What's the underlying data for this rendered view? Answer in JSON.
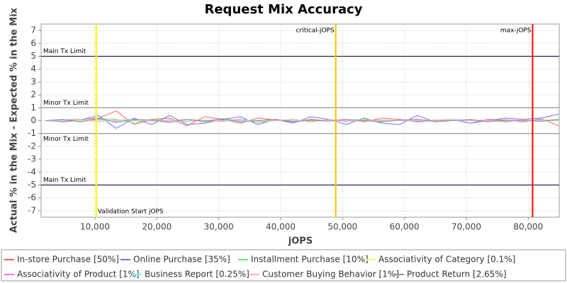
{
  "chart_data": {
    "type": "line",
    "title": "Request Mix Accuracy",
    "xlabel": "jOPS",
    "ylabel": "Actual % in the Mix - Expected % in the Mix",
    "xlim": [
      1300,
      85000
    ],
    "ylim": [
      -7.5,
      7.5
    ],
    "xticks": [
      {
        "value": 10000,
        "label": "10,000"
      },
      {
        "value": 20000,
        "label": "20,000"
      },
      {
        "value": 30000,
        "label": "30,000"
      },
      {
        "value": 40000,
        "label": "40,000"
      },
      {
        "value": 50000,
        "label": "50,000"
      },
      {
        "value": 60000,
        "label": "60,000"
      },
      {
        "value": 70000,
        "label": "70,000"
      },
      {
        "value": 80000,
        "label": "80,000"
      }
    ],
    "yticks": [
      -7,
      -6,
      -5,
      -4,
      -3,
      -2,
      -1,
      0,
      1,
      2,
      3,
      4,
      5,
      6,
      7
    ],
    "grid": true,
    "legend": "bottom",
    "x": [
      2000,
      4860,
      7720,
      10580,
      13440,
      16300,
      19160,
      22020,
      24880,
      27740,
      30600,
      33460,
      36320,
      39180,
      42040,
      44900,
      47760,
      50620,
      53480,
      56340,
      59200,
      62060,
      64920,
      67780,
      70640,
      73500,
      76360,
      79220,
      82080,
      84940
    ],
    "series": [
      {
        "name": "In-store Purchase [50%]",
        "color": "#ff6060",
        "values": [
          0,
          0.05,
          0.1,
          0.2,
          0.75,
          -0.3,
          0.1,
          0.2,
          -0.4,
          0.3,
          0.1,
          -0.2,
          0.2,
          0.05,
          -0.1,
          0.1,
          0,
          0.1,
          -0.1,
          0.2,
          0.1,
          -0.1,
          0,
          0.1,
          -0.2,
          0.1,
          0.05,
          -0.1,
          0.15,
          -0.4
        ]
      },
      {
        "name": "Online Purchase [35%]",
        "color": "#7070ff",
        "values": [
          0,
          -0.1,
          0.05,
          0.4,
          -0.6,
          0.2,
          -0.3,
          0.4,
          -0.3,
          -0.2,
          0.1,
          0.3,
          -0.3,
          0.1,
          -0.2,
          0.3,
          0.1,
          -0.3,
          0.2,
          -0.2,
          -0.3,
          0.4,
          -0.1,
          0.1,
          -0.2,
          0,
          0.2,
          0.1,
          0.2,
          0.5
        ]
      },
      {
        "name": "Installment Purchase [10%]",
        "color": "#70e070",
        "values": [
          0,
          0.1,
          -0.1,
          0.15,
          0.1,
          -0.2,
          0.1,
          0,
          0.1,
          -0.1,
          0.05,
          0.1,
          -0.15,
          0,
          0.1,
          -0.1,
          0.05,
          0,
          0.1,
          -0.05,
          0,
          0.1,
          -0.1,
          0,
          0.05,
          0,
          -0.1,
          0.05,
          0,
          0.1
        ]
      },
      {
        "name": "Associativity of Category [0.1%]",
        "color": "#ffff70",
        "values": [
          0,
          0,
          0.02,
          -0.02,
          0,
          0.01,
          0,
          -0.01,
          0.02,
          0,
          0,
          0.01,
          -0.01,
          0,
          0.01,
          0,
          -0.02,
          0,
          0.01,
          0,
          0,
          -0.01,
          0,
          0.01,
          0,
          0,
          0.01,
          0,
          -0.01,
          0
        ]
      },
      {
        "name": "Associativity of Product [1%]",
        "color": "#ff70ff",
        "values": [
          0,
          0.05,
          -0.05,
          0.1,
          -0.05,
          0.05,
          0,
          -0.05,
          0.1,
          0,
          -0.05,
          0.05,
          0,
          0.05,
          -0.05,
          0,
          0.05,
          -0.05,
          0,
          0.05,
          0,
          -0.05,
          0.05,
          0,
          0,
          0.05,
          -0.05,
          0,
          0.05,
          0
        ]
      },
      {
        "name": "Business Report [0.25%]",
        "color": "#70ffff",
        "values": [
          0,
          0.02,
          -0.03,
          0.05,
          0,
          -0.03,
          0.02,
          0,
          -0.02,
          0.03,
          0,
          -0.02,
          0.02,
          0,
          0.03,
          -0.02,
          0,
          0.02,
          -0.03,
          0,
          0.02,
          0,
          -0.02,
          0.02,
          0,
          -0.03,
          0.02,
          0,
          0.02,
          0
        ]
      },
      {
        "name": "Customer Buying Behavior [1%]",
        "color": "#ffb0b0",
        "values": [
          0,
          -0.05,
          0.1,
          -0.1,
          0.05,
          0.1,
          -0.05,
          0.05,
          -0.1,
          0.05,
          0,
          0.1,
          -0.05,
          0,
          0.05,
          -0.05,
          0.1,
          0,
          -0.05,
          0.05,
          0,
          0.05,
          -0.05,
          0.1,
          0,
          -0.05,
          0,
          0.05,
          -0.05,
          0.05
        ]
      },
      {
        "name": "Product Return [2.65%]",
        "color": "#909090",
        "values": [
          0,
          0.1,
          -0.1,
          0.2,
          -0.15,
          0.1,
          0.05,
          -0.15,
          0.1,
          -0.05,
          0.15,
          -0.1,
          0,
          0.1,
          -0.1,
          0.05,
          -0.05,
          0.1,
          0,
          -0.1,
          0.05,
          0.1,
          -0.05,
          0,
          0.1,
          -0.1,
          0.05,
          0,
          -0.05,
          0.1
        ]
      }
    ],
    "reference_lines": [
      {
        "value": 5,
        "label": "Main Tx Limit",
        "color": "#000040",
        "placement": "above"
      },
      {
        "value": 1,
        "label": "Minor Tx Limit",
        "color": "#808080",
        "placement": "above"
      },
      {
        "value": -1,
        "label": "Minor Tx Limit",
        "color": "#808080",
        "placement": "below"
      },
      {
        "value": -5,
        "label": "Main Tx Limit",
        "color": "#000040",
        "placement": "above"
      }
    ],
    "markers": [
      {
        "value": 10200,
        "label": "Validation Start jOPS",
        "color": "#ffff00",
        "placement": "bottom-right"
      },
      {
        "value": 48900,
        "label": "critical-jOPS",
        "color": "#ffc000",
        "placement": "top-left"
      },
      {
        "value": 80700,
        "label": "max-jOPS",
        "color": "#ff0000",
        "placement": "top-left"
      }
    ]
  }
}
